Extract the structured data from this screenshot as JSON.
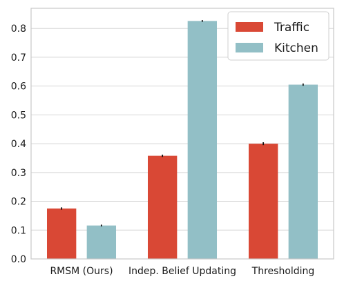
{
  "chart_data": {
    "type": "bar",
    "categories": [
      "RMSM (Ours)",
      "Indep. Belief Updating",
      "Thresholding"
    ],
    "series": [
      {
        "name": "Traffic",
        "color": "#d94835",
        "values": [
          0.175,
          0.358,
          0.4
        ],
        "errors": [
          0.004,
          0.004,
          0.005
        ]
      },
      {
        "name": "Kitchen",
        "color": "#92bfc6",
        "values": [
          0.116,
          0.826,
          0.605
        ],
        "errors": [
          0.003,
          0.003,
          0.004
        ]
      }
    ],
    "yticks": [
      "0.0",
      "0.1",
      "0.2",
      "0.3",
      "0.4",
      "0.5",
      "0.6",
      "0.7",
      "0.8"
    ],
    "ylim": [
      0,
      0.87
    ],
    "grid": "horizontal",
    "legend_position": "top-right"
  }
}
